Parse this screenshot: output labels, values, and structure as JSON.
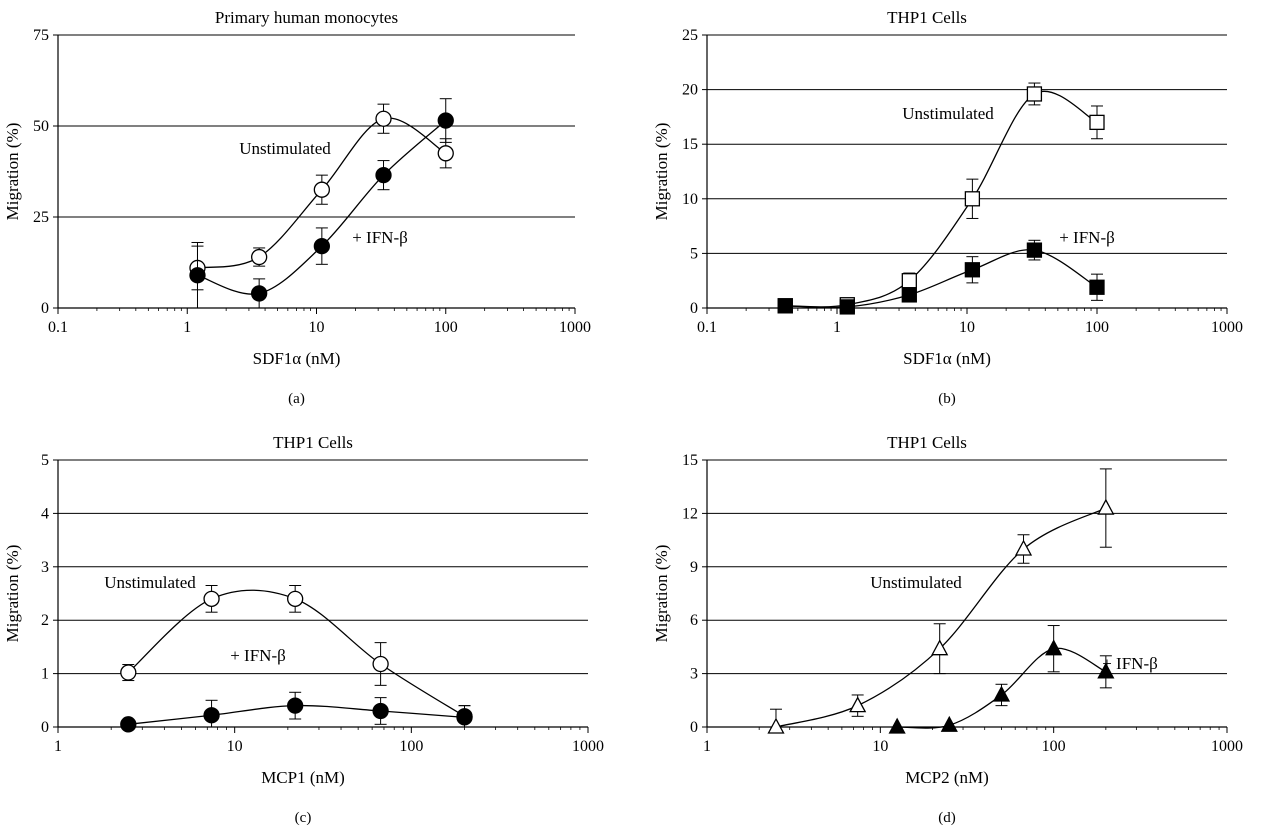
{
  "chart_data": [
    {
      "panel": "(a)",
      "type": "scatter",
      "title": "Primary human monocytes",
      "xlabel": "SDF1α (nM)",
      "ylabel": "Migration (%)",
      "xscale": "log",
      "xlim": [
        0.1,
        1000
      ],
      "ylim": [
        0,
        75
      ],
      "xticks": [
        0.1,
        1,
        10,
        100,
        1000
      ],
      "xtick_labels": [
        "0.1",
        "1",
        "10",
        "100",
        "1000"
      ],
      "yticks": [
        0,
        25,
        50,
        75
      ],
      "ytick_labels": [
        "0",
        "25",
        "50",
        "75"
      ],
      "grid": "horizontal",
      "series": [
        {
          "marker": "open-circle",
          "x": [
            1.2,
            3.6,
            11,
            33,
            100
          ],
          "y": [
            11,
            14,
            32.5,
            52,
            42.5
          ],
          "err": [
            6,
            2.5,
            4,
            4,
            4
          ]
        },
        {
          "marker": "filled-circle",
          "x": [
            1.2,
            3.6,
            11,
            33,
            100
          ],
          "y": [
            9,
            4,
            17,
            36.5,
            51.5
          ],
          "err": [
            9,
            4,
            5,
            4,
            6
          ]
        }
      ],
      "annotations": [
        "Unstimulated",
        "+ IFN-β"
      ]
    },
    {
      "panel": "(b)",
      "type": "scatter",
      "title": "THP1 Cells",
      "xlabel": "SDF1α (nM)",
      "ylabel": "Migration (%)",
      "xscale": "log",
      "xlim": [
        0.1,
        1000
      ],
      "ylim": [
        0,
        25
      ],
      "xticks": [
        0.1,
        1,
        10,
        100,
        1000
      ],
      "xtick_labels": [
        "0.1",
        "1",
        "10",
        "100",
        "1000"
      ],
      "yticks": [
        0,
        5,
        10,
        15,
        20,
        25
      ],
      "ytick_labels": [
        "0",
        "5",
        "10",
        "15",
        "20",
        "25"
      ],
      "grid": "horizontal",
      "series": [
        {
          "marker": "open-square",
          "x": [
            0.4,
            1.2,
            3.6,
            11,
            33,
            100
          ],
          "y": [
            0.2,
            0.3,
            2.5,
            10,
            19.6,
            17
          ],
          "err": [
            0.2,
            0.4,
            0.7,
            1.8,
            1,
            1.5
          ]
        },
        {
          "marker": "filled-square",
          "x": [
            0.4,
            1.2,
            3.6,
            11,
            33,
            100
          ],
          "y": [
            0.2,
            0.1,
            1.2,
            3.5,
            5.3,
            1.9
          ],
          "err": [
            0.2,
            0.2,
            0.5,
            1.2,
            0.9,
            1.2
          ]
        }
      ],
      "annotations": [
        "Unstimulated",
        "+ IFN-β"
      ]
    },
    {
      "panel": "(c)",
      "type": "scatter",
      "title": "THP1 Cells",
      "xlabel": "MCP1 (nM)",
      "ylabel": "Migration (%)",
      "xscale": "log",
      "xlim": [
        1,
        1000
      ],
      "ylim": [
        0,
        5
      ],
      "xticks": [
        1,
        10,
        100,
        1000
      ],
      "xtick_labels": [
        "1",
        "10",
        "100",
        "1000"
      ],
      "yticks": [
        0,
        1,
        2,
        3,
        4,
        5
      ],
      "ytick_labels": [
        "0",
        "1",
        "2",
        "3",
        "4",
        "5"
      ],
      "grid": "horizontal",
      "series": [
        {
          "marker": "open-circle",
          "x": [
            2.5,
            7.4,
            22,
            67,
            200
          ],
          "y": [
            1.02,
            2.4,
            2.4,
            1.18,
            0.2
          ],
          "err": [
            0.15,
            0.25,
            0.25,
            0.4,
            0.2
          ]
        },
        {
          "marker": "filled-circle",
          "x": [
            2.5,
            7.4,
            22,
            67,
            200
          ],
          "y": [
            0.05,
            0.22,
            0.4,
            0.3,
            0.18
          ],
          "err": [
            0.05,
            0.28,
            0.25,
            0.25,
            0.22
          ]
        }
      ],
      "annotations": [
        "Unstimulated",
        "+ IFN-β"
      ]
    },
    {
      "panel": "(d)",
      "type": "scatter",
      "title": "THP1 Cells",
      "xlabel": "MCP2 (nM)",
      "ylabel": "Migration (%)",
      "xscale": "log",
      "xlim": [
        1,
        1000
      ],
      "ylim": [
        0,
        15
      ],
      "xticks": [
        1,
        10,
        100,
        1000
      ],
      "xtick_labels": [
        "1",
        "10",
        "100",
        "1000"
      ],
      "yticks": [
        0,
        3,
        6,
        9,
        12,
        15
      ],
      "ytick_labels": [
        "0",
        "3",
        "6",
        "9",
        "12",
        "15"
      ],
      "grid": "horizontal",
      "series": [
        {
          "marker": "open-triangle",
          "x": [
            2.5,
            7.4,
            22,
            67,
            200
          ],
          "y": [
            0,
            1.2,
            4.4,
            10,
            12.3
          ],
          "err": [
            1,
            0.6,
            1.4,
            0.8,
            2.2
          ]
        },
        {
          "marker": "filled-triangle",
          "x": [
            12.5,
            25,
            50,
            100,
            200
          ],
          "y": [
            0,
            0.1,
            1.8,
            4.4,
            3.1
          ],
          "err": [
            0,
            0,
            0.6,
            1.3,
            0.9
          ]
        }
      ],
      "annotations": [
        "Unstimulated",
        "+ IFN-β"
      ]
    }
  ]
}
